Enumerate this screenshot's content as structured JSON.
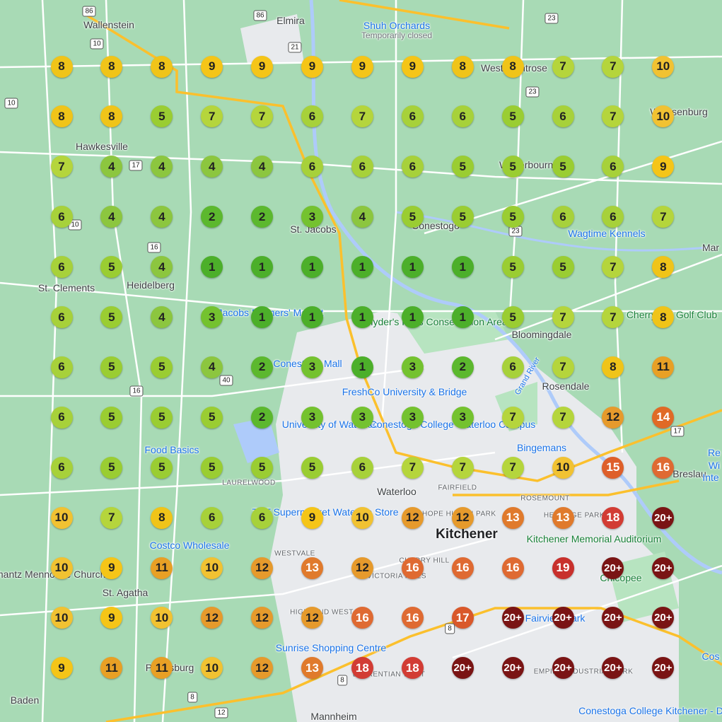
{
  "map": {
    "places": [
      {
        "name": "Wallenstein",
        "kind": "town"
      },
      {
        "name": "Elmira",
        "kind": "town"
      },
      {
        "name": "Shuh Orchards",
        "kind": "poi"
      },
      {
        "name": "Temporarily closed",
        "kind": "muted"
      },
      {
        "name": "West Montrose",
        "kind": "town"
      },
      {
        "name": "Weissenburg",
        "kind": "town"
      },
      {
        "name": "Hawkesville",
        "kind": "town"
      },
      {
        "name": "Winterbourne",
        "kind": "town"
      },
      {
        "name": "St. Jacobs",
        "kind": "town"
      },
      {
        "name": "Conestogo",
        "kind": "town"
      },
      {
        "name": "Wagtime Kennels",
        "kind": "poi"
      },
      {
        "name": "Mar",
        "kind": "town"
      },
      {
        "name": "St. Clements",
        "kind": "town"
      },
      {
        "name": "Heidelberg",
        "kind": "town"
      },
      {
        "name": "St. Jacobs Farmers' Market",
        "kind": "poi"
      },
      {
        "name": "Snyder's Flats Conservation Area",
        "kind": "park"
      },
      {
        "name": "Bloomingdale",
        "kind": "town"
      },
      {
        "name": "Cherry-Hill Golf Club",
        "kind": "park"
      },
      {
        "name": "Conestoga Mall",
        "kind": "poi"
      },
      {
        "name": "FreshCo University & Bridge",
        "kind": "poi"
      },
      {
        "name": "Grand River",
        "kind": "water"
      },
      {
        "name": "Rosendale",
        "kind": "town"
      },
      {
        "name": "University of Waterloo",
        "kind": "poi"
      },
      {
        "name": "Conestoga College Waterloo Campus",
        "kind": "poi"
      },
      {
        "name": "Bingemans",
        "kind": "poi"
      },
      {
        "name": "Food Basics",
        "kind": "poi"
      },
      {
        "name": "LAURELWOOD",
        "kind": "small"
      },
      {
        "name": "Waterloo",
        "kind": "town"
      },
      {
        "name": "FAIRFIELD",
        "kind": "small"
      },
      {
        "name": "ROSEMOUNT",
        "kind": "small"
      },
      {
        "name": "Breslau",
        "kind": "town"
      },
      {
        "name": "T&T Supermarket Waterloo Store",
        "kind": "poi"
      },
      {
        "name": "MT HOPE HURON PARK",
        "kind": "small"
      },
      {
        "name": "HERITAGE PARK",
        "kind": "small"
      },
      {
        "name": "Kitchener",
        "kind": "city"
      },
      {
        "name": "Kitchener Memorial Auditorium",
        "kind": "park"
      },
      {
        "name": "Costco Wholesale",
        "kind": "poi"
      },
      {
        "name": "WESTVALE",
        "kind": "small"
      },
      {
        "name": "Schantz Mennonite Church",
        "kind": "town"
      },
      {
        "name": "CHERRY HILL",
        "kind": "small"
      },
      {
        "name": "VICTORIA HILLS",
        "kind": "small"
      },
      {
        "name": "Chicopee",
        "kind": "park"
      },
      {
        "name": "St. Agatha",
        "kind": "town"
      },
      {
        "name": "HIGHLAND WEST",
        "kind": "small"
      },
      {
        "name": "Fairview Park",
        "kind": "poi"
      },
      {
        "name": "Sunrise Shopping Centre",
        "kind": "poi"
      },
      {
        "name": "Petersburg",
        "kind": "town"
      },
      {
        "name": "LAURENTIAN WEST",
        "kind": "small"
      },
      {
        "name": "EMPIRE INDUSTRIAL PARK",
        "kind": "small"
      },
      {
        "name": "Baden",
        "kind": "town"
      },
      {
        "name": "Mannheim",
        "kind": "town"
      },
      {
        "name": "Conestoga College Kitchener - Doon...",
        "kind": "poi"
      },
      {
        "name": "Re",
        "kind": "poi"
      },
      {
        "name": "Wi",
        "kind": "poi"
      },
      {
        "name": "Inte",
        "kind": "poi"
      },
      {
        "name": "Cos",
        "kind": "poi"
      }
    ],
    "shields": [
      "86",
      "86",
      "23",
      "10",
      "21",
      "10",
      "23",
      "17",
      "10",
      "16",
      "23",
      "40",
      "16",
      "17",
      "8",
      "8",
      "8",
      "12"
    ],
    "colors": {
      "land": "#a8dab5",
      "urban": "#e8eaed",
      "road": "#ffffff",
      "highway": "#fbc02d",
      "water": "#aecbfa",
      "rank_1": "#4caf2a",
      "rank_2": "#5cb82e",
      "rank_3": "#74c22f",
      "rank_4": "#8cc63f",
      "rank_5": "#9acd32",
      "rank_6": "#a7d13a",
      "rank_7": "#b5d53c",
      "rank_8": "#f0c419",
      "rank_9": "#f5c518",
      "rank_10": "#f1c232",
      "rank_11": "#e8a025",
      "rank_12": "#e69a2c",
      "rank_13": "#e07a2c",
      "rank_14": "#e06a26",
      "rank_15": "#de5f2a",
      "rank_16": "#df6a32",
      "rank_17": "#d9582a",
      "rank_18": "#d23c34",
      "rank_19": "#c8302c",
      "rank_20plus": "#7a1414"
    }
  },
  "grid": {
    "columns": 13,
    "rows": [
      [
        "8",
        "8",
        "8",
        "9",
        "9",
        "9",
        "9",
        "9",
        "8",
        "8",
        "7",
        "7",
        "10"
      ],
      [
        "8",
        "8",
        "5",
        "7",
        "7",
        "6",
        "7",
        "6",
        "6",
        "5",
        "6",
        "7",
        "10"
      ],
      [
        "7",
        "4",
        "4",
        "4",
        "4",
        "6",
        "6",
        "6",
        "5",
        "5",
        "5",
        "6",
        "9"
      ],
      [
        "6",
        "4",
        "4",
        "2",
        "2",
        "3",
        "4",
        "5",
        "5",
        "5",
        "6",
        "6",
        "7"
      ],
      [
        "6",
        "5",
        "4",
        "1",
        "1",
        "1",
        "1",
        "1",
        "1",
        "5",
        "5",
        "7",
        "8"
      ],
      [
        "6",
        "5",
        "4",
        "3",
        "1",
        "1",
        "1",
        "1",
        "1",
        "5",
        "7",
        "7",
        "8"
      ],
      [
        "6",
        "5",
        "5",
        "4",
        "2",
        "3",
        "1",
        "3",
        "2",
        "6",
        "7",
        "8",
        "11"
      ],
      [
        "6",
        "5",
        "5",
        "5",
        "2",
        "3",
        "3",
        "3",
        "3",
        "7",
        "7",
        "12",
        "14"
      ],
      [
        "6",
        "5",
        "5",
        "5",
        "5",
        "5",
        "6",
        "7",
        "7",
        "7",
        "10",
        "15",
        "16"
      ],
      [
        "10",
        "7",
        "8",
        "6",
        "6",
        "9",
        "10",
        "12",
        "12",
        "13",
        "13",
        "18",
        "20+"
      ],
      [
        "10",
        "9",
        "11",
        "10",
        "12",
        "13",
        "12",
        "16",
        "16",
        "16",
        "19",
        "20+",
        "20+"
      ],
      [
        "10",
        "9",
        "10",
        "12",
        "12",
        "12",
        "16",
        "16",
        "17",
        "20+",
        "20+",
        "20+",
        "20+"
      ],
      [
        "9",
        "11",
        "11",
        "10",
        "12",
        "13",
        "18",
        "18",
        "20+",
        "20+",
        "20+",
        "20+",
        "20+"
      ]
    ]
  }
}
